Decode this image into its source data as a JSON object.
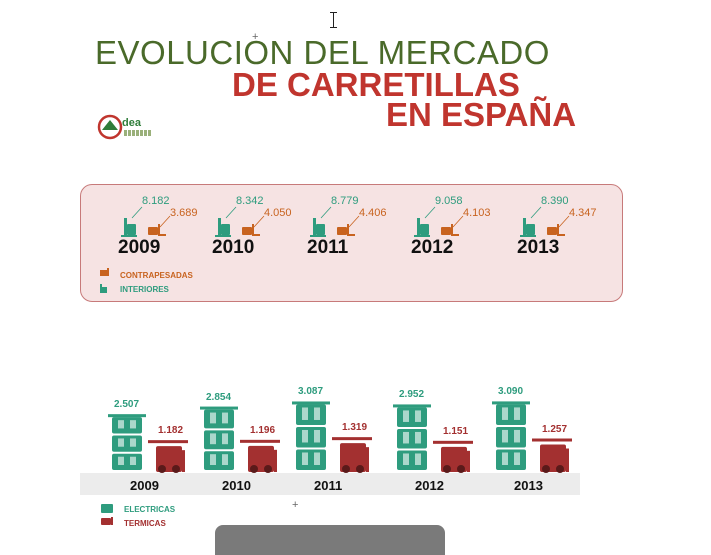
{
  "title": {
    "line1": "EVOLUCION DEL MERCADO",
    "line2": "DE CARRETILLAS",
    "line3": "EN ESPAÑA"
  },
  "logo": {
    "text": "dea"
  },
  "colors": {
    "title_green": "#4a6a2a",
    "title_red": "#c0352e",
    "interiores": "#2e9c7e",
    "contrapesadas": "#c8631f",
    "electricas": "#2e9c7e",
    "termicas": "#a33030",
    "panel_bg": "#f6e3e3"
  },
  "chart_data": [
    {
      "type": "bar",
      "categories": [
        "2009",
        "2010",
        "2011",
        "2012",
        "2013"
      ],
      "series": [
        {
          "name": "INTERIORES",
          "values_label": [
            "8.182",
            "8.342",
            "8.779",
            "9.058",
            "8.390"
          ],
          "values": [
            8182,
            8342,
            8779,
            9058,
            8390
          ]
        },
        {
          "name": "CONTRAPESADAS",
          "values_label": [
            "3.689",
            "4.050",
            "4.406",
            "4.103",
            "4.347"
          ],
          "values": [
            3689,
            4050,
            4406,
            4103,
            4347
          ]
        }
      ],
      "legend": [
        "CONTRAPESADAS",
        "INTERIORES"
      ],
      "legend_placement": "bottom-left"
    },
    {
      "type": "bar",
      "categories": [
        "2009",
        "2010",
        "2011",
        "2012",
        "2013"
      ],
      "series": [
        {
          "name": "ELECTRICAS",
          "values_label": [
            "2.507",
            "2.854",
            "3.087",
            "2.952",
            "3.090"
          ],
          "values": [
            2507,
            2854,
            3087,
            2952,
            3090
          ]
        },
        {
          "name": "TERMICAS",
          "values_label": [
            "1.182",
            "1.196",
            "1.319",
            "1.151",
            "1.257"
          ],
          "values": [
            1182,
            1196,
            1319,
            1151,
            1257
          ]
        }
      ],
      "legend": [
        "ELECTRICAS",
        "TERMICAS"
      ],
      "legend_placement": "bottom-left"
    }
  ]
}
